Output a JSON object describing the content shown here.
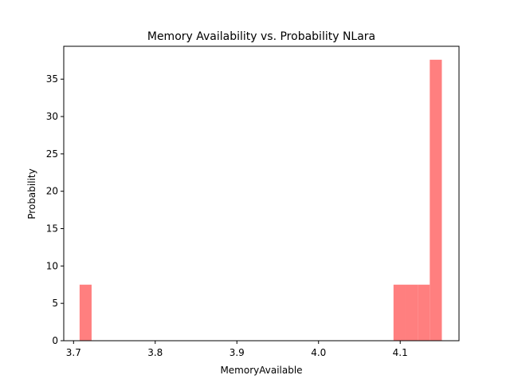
{
  "chart_data": {
    "type": "bar",
    "title": "Memory Availability vs. Probability NLara",
    "xlabel": "MemoryAvailable",
    "ylabel": "Probability",
    "xlim": [
      3.688,
      4.172
    ],
    "ylim": [
      0,
      39.4
    ],
    "xticks": [
      3.7,
      3.8,
      3.9,
      4.0,
      4.1
    ],
    "xtick_labels": [
      "3.7",
      "3.8",
      "3.9",
      "4.0",
      "4.1"
    ],
    "yticks": [
      0,
      5,
      10,
      15,
      20,
      25,
      30,
      35
    ],
    "ytick_labels": [
      "0",
      "5",
      "10",
      "15",
      "20",
      "25",
      "30",
      "35"
    ],
    "bar_color": "#ff7f7f",
    "grid": false,
    "bins": [
      {
        "x0": 3.7074,
        "x1": 3.7221,
        "value": 7.5
      },
      {
        "x0": 4.0918,
        "x1": 4.1066,
        "value": 7.5
      },
      {
        "x0": 4.1066,
        "x1": 4.1214,
        "value": 7.5
      },
      {
        "x0": 4.1214,
        "x1": 4.1362,
        "value": 7.5
      },
      {
        "x0": 4.1362,
        "x1": 4.151,
        "value": 37.6
      }
    ]
  }
}
